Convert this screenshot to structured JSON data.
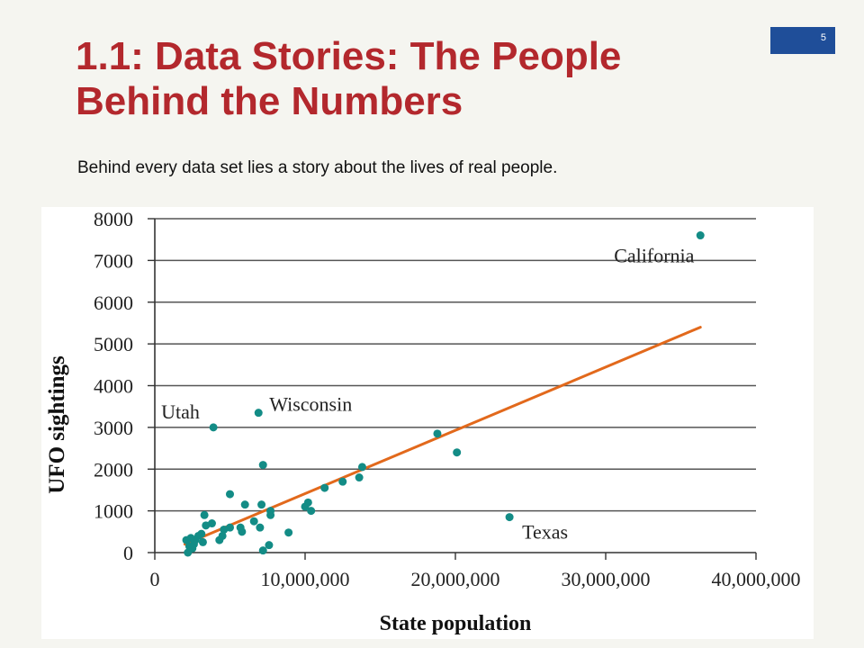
{
  "slide": {
    "number": "5",
    "title": "1.1: Data Stories: The People Behind the Numbers",
    "subtitle": "Behind every data set lies a story about the lives of real people."
  },
  "colors": {
    "title": "#b3282d",
    "slide_number_bg": "#1f4e99",
    "points": "#138c86",
    "trend_line": "#e2691c",
    "gridlines": "#555555"
  },
  "chart_data": {
    "type": "scatter",
    "title": "",
    "xlabel": "State population",
    "ylabel": "UFO sightings",
    "xlim": [
      0,
      40000000
    ],
    "ylim": [
      0,
      8000
    ],
    "x_ticks": [
      0,
      10000000,
      20000000,
      30000000,
      40000000
    ],
    "x_tick_labels": [
      "0",
      "10,000,000",
      "20,000,000",
      "30,000,000",
      "40,000,000"
    ],
    "y_ticks": [
      0,
      1000,
      2000,
      3000,
      4000,
      5000,
      6000,
      7000,
      8000
    ],
    "y_tick_labels": [
      "0",
      "1000",
      "2000",
      "3000",
      "4000",
      "5000",
      "6000",
      "7000",
      "8000"
    ],
    "grid": "horizontal",
    "trend_line": {
      "x": [
        2000000,
        36300000
      ],
      "y": [
        200,
        5400
      ]
    },
    "points": [
      {
        "x": 36300000,
        "y": 7600,
        "label": "California"
      },
      {
        "x": 23600000,
        "y": 850,
        "label": "Texas"
      },
      {
        "x": 6900000,
        "y": 3350,
        "label": "Wisconsin"
      },
      {
        "x": 3900000,
        "y": 3000,
        "label": "Utah"
      },
      {
        "x": 18800000,
        "y": 2850
      },
      {
        "x": 20100000,
        "y": 2400
      },
      {
        "x": 13800000,
        "y": 2050
      },
      {
        "x": 13600000,
        "y": 1800
      },
      {
        "x": 12500000,
        "y": 1700
      },
      {
        "x": 11300000,
        "y": 1550
      },
      {
        "x": 10200000,
        "y": 1200
      },
      {
        "x": 10400000,
        "y": 1000
      },
      {
        "x": 10000000,
        "y": 1100
      },
      {
        "x": 7200000,
        "y": 2100
      },
      {
        "x": 7100000,
        "y": 1150
      },
      {
        "x": 7700000,
        "y": 1000
      },
      {
        "x": 7700000,
        "y": 900
      },
      {
        "x": 6600000,
        "y": 750
      },
      {
        "x": 7000000,
        "y": 600
      },
      {
        "x": 8900000,
        "y": 480
      },
      {
        "x": 7600000,
        "y": 180
      },
      {
        "x": 7200000,
        "y": 50
      },
      {
        "x": 5000000,
        "y": 1400
      },
      {
        "x": 6000000,
        "y": 1150
      },
      {
        "x": 5700000,
        "y": 600
      },
      {
        "x": 5800000,
        "y": 500
      },
      {
        "x": 5000000,
        "y": 600
      },
      {
        "x": 4600000,
        "y": 550
      },
      {
        "x": 4500000,
        "y": 400
      },
      {
        "x": 4300000,
        "y": 300
      },
      {
        "x": 3800000,
        "y": 700
      },
      {
        "x": 3400000,
        "y": 650
      },
      {
        "x": 3300000,
        "y": 900
      },
      {
        "x": 3100000,
        "y": 450
      },
      {
        "x": 2900000,
        "y": 400
      },
      {
        "x": 2700000,
        "y": 300
      },
      {
        "x": 2600000,
        "y": 200
      },
      {
        "x": 2400000,
        "y": 350
      },
      {
        "x": 2300000,
        "y": 150
      },
      {
        "x": 2100000,
        "y": 300
      },
      {
        "x": 2200000,
        "y": 0
      },
      {
        "x": 2500000,
        "y": 100
      },
      {
        "x": 3200000,
        "y": 250
      }
    ]
  }
}
